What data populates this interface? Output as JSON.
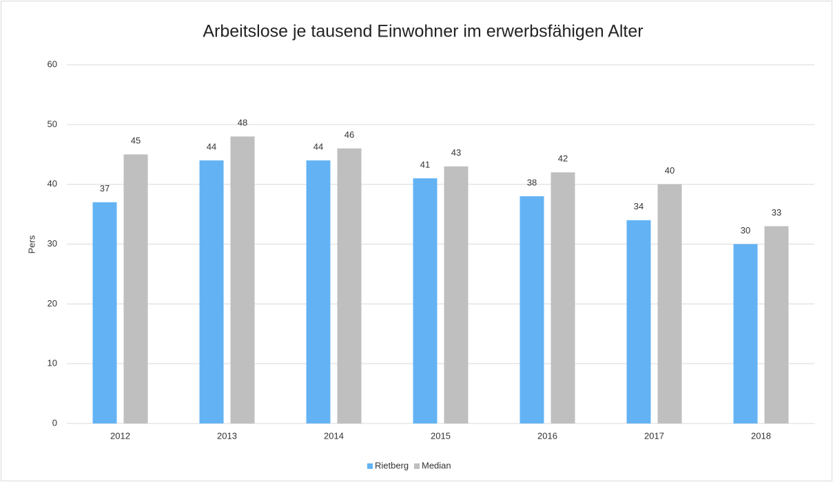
{
  "chart_data": {
    "type": "bar",
    "title": "Arbeitslose je tausend Einwohner im erwerbsfähigen Alter",
    "y_label": "Pers",
    "categories": [
      "2012",
      "2013",
      "2014",
      "2015",
      "2016",
      "2017",
      "2018"
    ],
    "series": [
      {
        "name": "Rietberg",
        "color": "#63b3f4",
        "values": [
          37,
          44,
          44,
          41,
          38,
          34,
          30
        ]
      },
      {
        "name": "Median",
        "color": "#bfbfbf",
        "values": [
          45,
          48,
          46,
          43,
          42,
          40,
          33
        ]
      }
    ],
    "ylim": [
      0,
      60
    ],
    "yticks": [
      0,
      10,
      20,
      30,
      40,
      50,
      60
    ],
    "grid": true,
    "legend": "bottom"
  }
}
